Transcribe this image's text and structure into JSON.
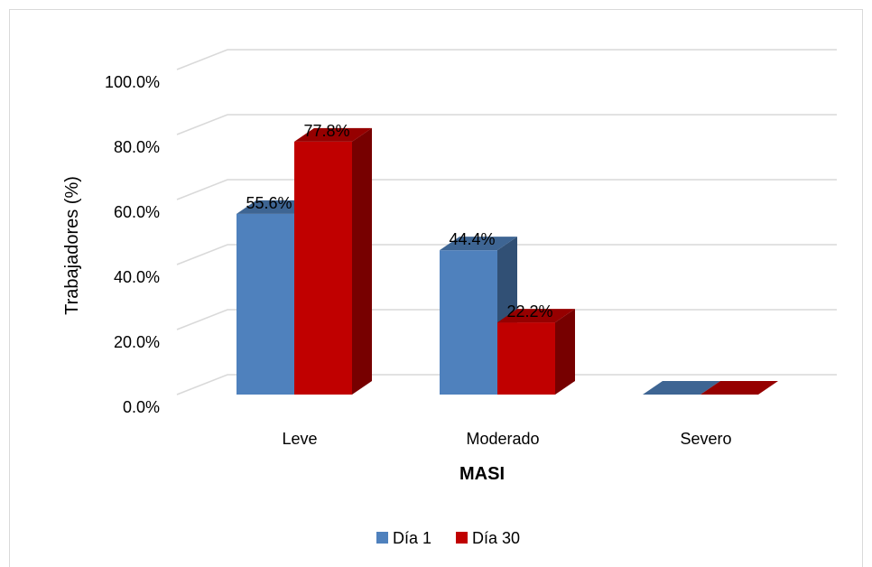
{
  "chart_data": {
    "type": "bar",
    "title": "",
    "xlabel": "MASI",
    "ylabel": "Trabajadores (%)",
    "categories": [
      "Leve",
      "Moderado",
      "Severo"
    ],
    "series": [
      {
        "name": "Día 1",
        "values": [
          55.6,
          44.4,
          0
        ],
        "labels": [
          "55.6%",
          "44.4%",
          ""
        ],
        "color": "#4f81bd"
      },
      {
        "name": "Día 30",
        "values": [
          77.8,
          22.2,
          0
        ],
        "labels": [
          "77.8%",
          "22.2%",
          ""
        ],
        "color": "#c00000"
      }
    ],
    "yticks": [
      "0.0%",
      "20.0%",
      "40.0%",
      "60.0%",
      "80.0%",
      "100.0%"
    ],
    "ylim": [
      0,
      100
    ],
    "grid": true,
    "legend_position": "bottom"
  }
}
